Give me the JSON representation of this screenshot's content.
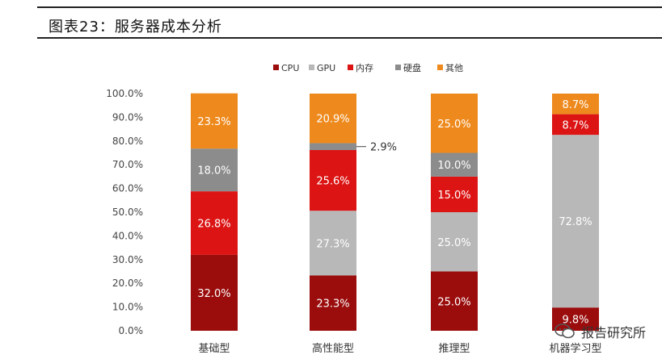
{
  "figure": {
    "title": "图表23：服务器成本分析"
  },
  "watermark": {
    "text": "报告研究所",
    "icon": "wechat-icon"
  },
  "chart_data": {
    "type": "bar",
    "stacked": true,
    "percent": true,
    "categories": [
      "基础型",
      "高性能型",
      "推理型",
      "机器学习型"
    ],
    "series": [
      {
        "name": "CPU",
        "color": "#9b0d0d",
        "values": [
          32.0,
          23.3,
          25.0,
          9.8
        ],
        "labels": [
          "32.0%",
          "23.3%",
          "25.0%",
          "9.8%"
        ]
      },
      {
        "name": "GPU",
        "color": "#b8b8b8",
        "values": [
          0,
          27.3,
          25.0,
          72.8
        ],
        "labels": [
          "",
          "27.3%",
          "25.0%",
          "72.8%"
        ]
      },
      {
        "name": "内存",
        "color": "#dc1414",
        "values": [
          26.8,
          25.6,
          15.0,
          8.7
        ],
        "labels": [
          "26.8%",
          "25.6%",
          "15.0%",
          "8.7%"
        ]
      },
      {
        "name": "硬盘",
        "color": "#8c8c8c",
        "values": [
          18.0,
          2.9,
          10.0,
          0
        ],
        "labels": [
          "18.0%",
          "",
          "10.0%",
          ""
        ]
      },
      {
        "name": "其他",
        "color": "#ee8a1d",
        "values": [
          23.3,
          20.9,
          25.0,
          8.7
        ],
        "labels": [
          "23.3%",
          "20.9%",
          "25.0%",
          "8.7%"
        ]
      }
    ],
    "callouts": [
      {
        "category_index": 1,
        "series_index": 3,
        "text": "2.9%"
      }
    ],
    "y_ticks": [
      "0.0%",
      "10.0%",
      "20.0%",
      "30.0%",
      "40.0%",
      "50.0%",
      "60.0%",
      "70.0%",
      "80.0%",
      "90.0%",
      "100.0%"
    ],
    "ylim": [
      0,
      100
    ],
    "legend_position": "top-center",
    "grid": false
  }
}
